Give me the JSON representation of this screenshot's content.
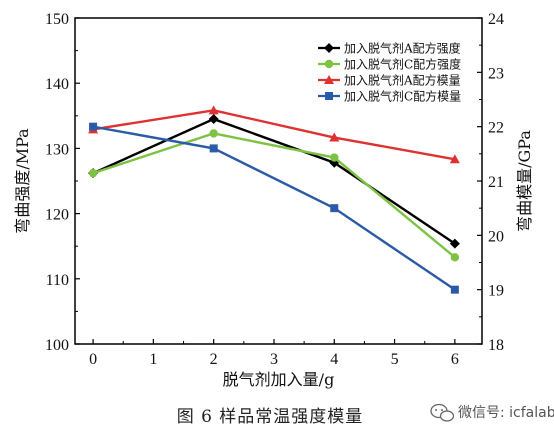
{
  "caption": "图 6   样品常温强度模量",
  "watermark": {
    "text": "微信号: icfalab",
    "icon": "wechat-icon"
  },
  "chart_data": {
    "type": "line",
    "xlabel": "脱气剂加入量/g",
    "ylabel_left": "弯曲强度/MPa",
    "ylabel_right": "弯曲模量/GPa",
    "xlim": [
      -0.3,
      6.45
    ],
    "ylim_left": [
      100,
      150
    ],
    "ylim_right": [
      18,
      24
    ],
    "x_ticks": [
      "0",
      "1",
      "2",
      "3",
      "4",
      "5",
      "6"
    ],
    "y_left_ticks": [
      "100",
      "110",
      "120",
      "130",
      "140",
      "150"
    ],
    "y_right_ticks": [
      "18",
      "19",
      "20",
      "21",
      "22",
      "23",
      "24"
    ],
    "grid": false,
    "legend_position": "top-right",
    "series": [
      {
        "name": "加入脱气剂A配方强度",
        "axis": "left",
        "color": "#000000",
        "marker": "diamond",
        "x": [
          0,
          2,
          4,
          6
        ],
        "y": [
          126.2,
          134.5,
          127.8,
          115.4
        ]
      },
      {
        "name": "加入脱气剂C配方强度",
        "axis": "left",
        "color": "#7dc242",
        "marker": "circle",
        "x": [
          0,
          2,
          4,
          6
        ],
        "y": [
          126.2,
          132.3,
          128.6,
          113.3
        ]
      },
      {
        "name": "加入脱气剂A配方模量",
        "axis": "right",
        "color": "#e03131",
        "marker": "triangle",
        "x": [
          0,
          2,
          4,
          6
        ],
        "y": [
          21.95,
          22.3,
          21.8,
          21.4
        ]
      },
      {
        "name": "加入脱气剂C配方模量",
        "axis": "right",
        "color": "#2b5aa6",
        "marker": "square",
        "x": [
          0,
          2,
          4,
          6
        ],
        "y": [
          22.0,
          21.6,
          20.5,
          19.0
        ]
      }
    ]
  }
}
